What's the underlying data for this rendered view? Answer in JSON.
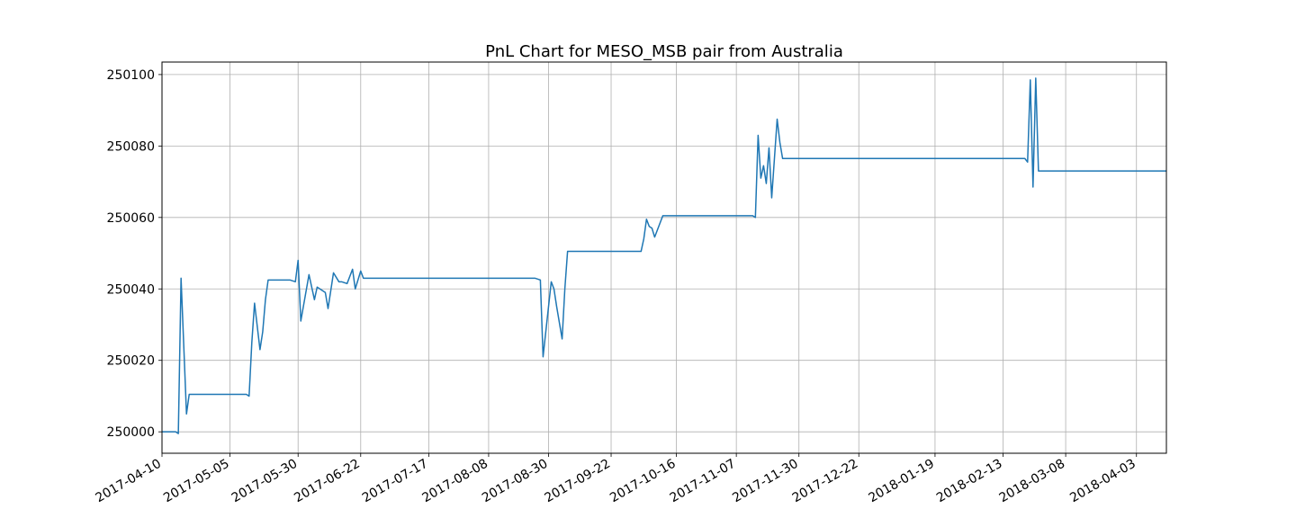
{
  "chart_data": {
    "type": "line",
    "title": "PnL Chart for MESO_MSB pair from Australia",
    "xlabel": "",
    "ylabel": "",
    "grid": true,
    "x_axis_type": "date",
    "xlim": [
      "2017-04-10",
      "2018-04-14"
    ],
    "ylim": [
      249994,
      250103.5
    ],
    "x_ticks": [
      "2017-04-10",
      "2017-05-05",
      "2017-05-30",
      "2017-06-22",
      "2017-07-17",
      "2017-08-08",
      "2017-08-30",
      "2017-09-22",
      "2017-10-16",
      "2017-11-07",
      "2017-11-30",
      "2017-12-22",
      "2018-01-19",
      "2018-02-13",
      "2018-03-08",
      "2018-04-03"
    ],
    "y_ticks": [
      250000,
      250020,
      250040,
      250060,
      250080,
      250100
    ],
    "line_color": "#1f77b4",
    "series": [
      {
        "x": [
          "2017-04-10",
          "2017-04-15",
          "2017-04-16",
          "2017-04-17",
          "2017-04-19",
          "2017-04-20",
          "2017-05-11",
          "2017-05-12",
          "2017-05-13",
          "2017-05-14",
          "2017-05-16",
          "2017-05-17",
          "2017-05-18",
          "2017-05-19",
          "2017-05-21",
          "2017-05-27",
          "2017-05-29",
          "2017-05-30",
          "2017-05-31",
          "2017-06-03",
          "2017-06-05",
          "2017-06-06",
          "2017-06-08",
          "2017-06-09",
          "2017-06-10",
          "2017-06-12",
          "2017-06-14",
          "2017-06-15",
          "2017-06-17",
          "2017-06-19",
          "2017-06-20",
          "2017-06-22",
          "2017-06-23",
          "2017-06-25",
          "2017-06-26",
          "2017-06-28",
          "2017-06-29",
          "2017-06-30",
          "2017-07-01",
          "2017-08-25",
          "2017-08-27",
          "2017-08-28",
          "2017-08-30",
          "2017-08-31",
          "2017-09-01",
          "2017-09-02",
          "2017-09-04",
          "2017-09-05",
          "2017-09-06",
          "2017-10-03",
          "2017-10-04",
          "2017-10-05",
          "2017-10-06",
          "2017-10-07",
          "2017-10-08",
          "2017-10-10",
          "2017-10-11",
          "2017-10-12",
          "2017-10-13",
          "2017-11-13",
          "2017-11-14",
          "2017-11-15",
          "2017-11-16",
          "2017-11-17",
          "2017-11-18",
          "2017-11-19",
          "2017-11-20",
          "2017-11-22",
          "2017-11-23",
          "2017-11-24",
          "2017-11-25",
          "2017-11-26",
          "2018-02-21",
          "2018-02-22",
          "2018-02-23",
          "2018-02-24",
          "2018-02-25",
          "2018-02-26",
          "2018-02-27",
          "2018-04-14"
        ],
        "y": [
          250000.0,
          250000.0,
          249999.5,
          250043.0,
          250005.0,
          250010.5,
          250010.5,
          250010.0,
          250025.0,
          250036.0,
          250023.0,
          250028.0,
          250037.0,
          250042.5,
          250042.5,
          250042.5,
          250042.0,
          250048.0,
          250031.0,
          250044.0,
          250037.0,
          250040.5,
          250039.5,
          250039.0,
          250034.5,
          250044.5,
          250042.0,
          250042.0,
          250041.5,
          250045.5,
          250040.0,
          250045.0,
          250043.0,
          250043.0,
          250043.0,
          250043.0,
          250043.0,
          250043.0,
          250043.0,
          250043.0,
          250042.5,
          250021.0,
          250035.0,
          250042.0,
          250040.0,
          250035.0,
          250026.0,
          250040.0,
          250050.5,
          250050.5,
          250054.0,
          250059.5,
          250057.5,
          250057.0,
          250054.5,
          250058.5,
          250060.5,
          250060.5,
          250060.5,
          250060.5,
          250060.0,
          250083.0,
          250071.0,
          250074.5,
          250069.5,
          250079.5,
          250065.5,
          250087.5,
          250081.0,
          250076.5,
          250076.5,
          250076.5,
          250076.5,
          250075.5,
          250098.5,
          250068.5,
          250099.0,
          250073.0,
          250073.0,
          250073.0
        ]
      }
    ]
  }
}
